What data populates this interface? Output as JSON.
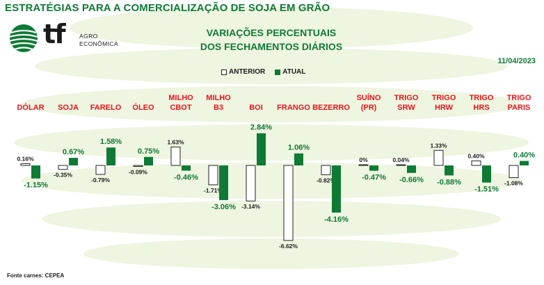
{
  "header": {
    "title": "ESTRATÉGIAS PARA A COMERCIALIZAÇÃO DE SOJA EM GRÃO"
  },
  "logo": {
    "mark": "tf",
    "line1": "AGRO",
    "line2": "ECONÔMICA"
  },
  "chart_title": {
    "line1": "VARIAÇÕES PERCENTUAIS",
    "line2": "DOS FECHAMENTOS DIÁRIOS"
  },
  "date": "11/04/2023",
  "legend": {
    "previous": "ANTERIOR",
    "current": "ATUAL"
  },
  "source": "Fonte carnes: CEPEA",
  "colors": {
    "current": "#0e7a35",
    "previous": "#ffffff",
    "category_label": "#e8141b",
    "title": "#0e7a35"
  },
  "chart_data": {
    "type": "bar",
    "categories": [
      [
        "DÓLAR"
      ],
      [
        "SOJA"
      ],
      [
        "FARELO"
      ],
      [
        "ÓLEO"
      ],
      [
        "MILHO",
        "CBOT"
      ],
      [
        "MILHO",
        "B3"
      ],
      [
        "BOI"
      ],
      [
        "FRANGO"
      ],
      [
        "BEZERRO"
      ],
      [
        "SUÍNO",
        "(PR)"
      ],
      [
        "TRIGO",
        "SRW"
      ],
      [
        "TRIGO",
        "HRW"
      ],
      [
        "TRIGO",
        "HRS"
      ],
      [
        "TRIGO",
        "PARIS"
      ]
    ],
    "series": [
      {
        "name": "ANTERIOR",
        "values": [
          0.16,
          -0.35,
          -0.79,
          -0.09,
          1.63,
          -1.71,
          -3.14,
          -6.62,
          -0.82,
          0,
          0.04,
          1.33,
          0.4,
          -1.08
        ],
        "labels": [
          "0.16%",
          "-0.35%",
          "-0.79%",
          "-0.09%",
          "1.63%",
          "-1.71%",
          "-3.14%",
          "-6.62%",
          "-0.82%",
          "0%",
          "0.04%",
          "1.33%",
          "0.40%",
          "-1.08%"
        ]
      },
      {
        "name": "ATUAL",
        "values": [
          -1.15,
          0.67,
          1.58,
          0.75,
          -0.46,
          -3.06,
          2.84,
          1.06,
          -4.16,
          -0.47,
          -0.66,
          -0.88,
          -1.51,
          0.4
        ],
        "labels": [
          "-1.15%",
          "0.67%",
          "1.58%",
          "0.75%",
          "-0.46%",
          "-3.06%",
          "2.84%",
          "1.06%",
          "-4.16%",
          "-0.47%",
          "-0.66%",
          "-0.88%",
          "-1.51%",
          "0.40%"
        ]
      }
    ],
    "unit": "%"
  }
}
